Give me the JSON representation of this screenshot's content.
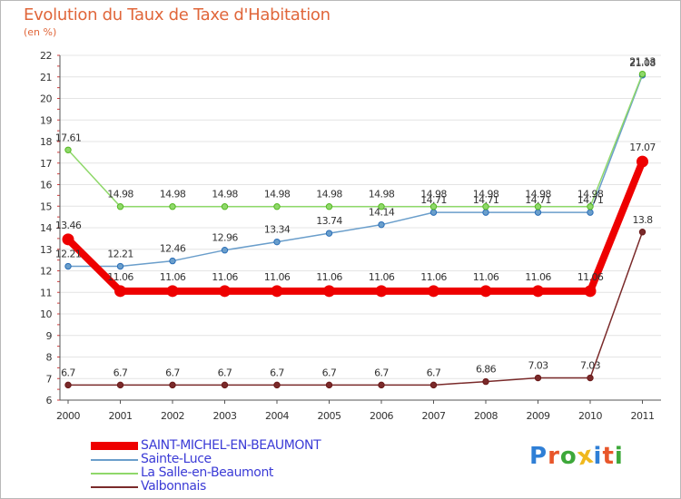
{
  "header": {
    "title": "Evolution du Taux de Taxe d'Habitation",
    "subtitle": "(en %)"
  },
  "logo": {
    "text": "Proxiti",
    "letters": [
      {
        "char": "P",
        "color": "#2f7fd6"
      },
      {
        "char": "r",
        "color": "#e8562a"
      },
      {
        "char": "o",
        "color": "#3da83a"
      },
      {
        "char": "x",
        "color": "#f0b81c"
      },
      {
        "char": "i",
        "color": "#2f7fd6"
      },
      {
        "char": "t",
        "color": "#e8562a"
      },
      {
        "char": "i",
        "color": "#3da83a"
      }
    ]
  },
  "chart_data": {
    "type": "line",
    "title": "Evolution du Taux de Taxe d'Habitation",
    "subtitle": "(en %)",
    "xlabel": "",
    "ylabel": "",
    "x": [
      "2000",
      "2001",
      "2002",
      "2003",
      "2004",
      "2005",
      "2006",
      "2007",
      "2008",
      "2009",
      "2010",
      "2011"
    ],
    "ylim": [
      6,
      22
    ],
    "yticks": [
      6,
      7,
      8,
      9,
      10,
      11,
      12,
      13,
      14,
      15,
      16,
      17,
      18,
      19,
      20,
      21,
      22
    ],
    "grid": "horizontal",
    "legend_position": "bottom-left",
    "series": [
      {
        "name": "SAINT-MICHEL-EN-BEAUMONT",
        "color": "#ee0000",
        "values": [
          13.46,
          11.06,
          11.06,
          11.06,
          11.06,
          11.06,
          11.06,
          11.06,
          11.06,
          11.06,
          11.06,
          17.07
        ],
        "labels": [
          "13.46",
          "11.06",
          "11.06",
          "11.06",
          "11.06",
          "11.06",
          "11.06",
          "11.06",
          "11.06",
          "11.06",
          "11.06",
          "17.07"
        ]
      },
      {
        "name": "Sainte-Luce",
        "color": "#6a9ecb",
        "values": [
          12.21,
          12.21,
          12.46,
          12.96,
          13.34,
          13.74,
          14.14,
          14.71,
          14.71,
          14.71,
          14.71,
          21.08
        ],
        "labels": [
          "12.21",
          "12.21",
          "12.46",
          "12.96",
          "13.34",
          "13.74",
          "14.14",
          "14.71",
          "14.71",
          "14.71",
          "14.71",
          "21.08"
        ]
      },
      {
        "name": "La Salle-en-Beaumont",
        "color": "#8fd86a",
        "values": [
          17.61,
          14.98,
          14.98,
          14.98,
          14.98,
          14.98,
          14.98,
          14.98,
          14.98,
          14.98,
          14.98,
          21.13
        ],
        "labels": [
          "17.61",
          "14.98",
          "14.98",
          "14.98",
          "14.98",
          "14.98",
          "14.98",
          "14.98",
          "14.98",
          "14.98",
          "14.98",
          "21.13"
        ]
      },
      {
        "name": "Valbonnais",
        "color": "#7a2a2a",
        "values": [
          6.7,
          6.7,
          6.7,
          6.7,
          6.7,
          6.7,
          6.7,
          6.7,
          6.86,
          7.03,
          7.03,
          13.8
        ],
        "labels": [
          "6.7",
          "6.7",
          "6.7",
          "6.7",
          "6.7",
          "6.7",
          "6.7",
          "6.7",
          "6.86",
          "7.03",
          "7.03",
          "13.8"
        ]
      }
    ]
  }
}
